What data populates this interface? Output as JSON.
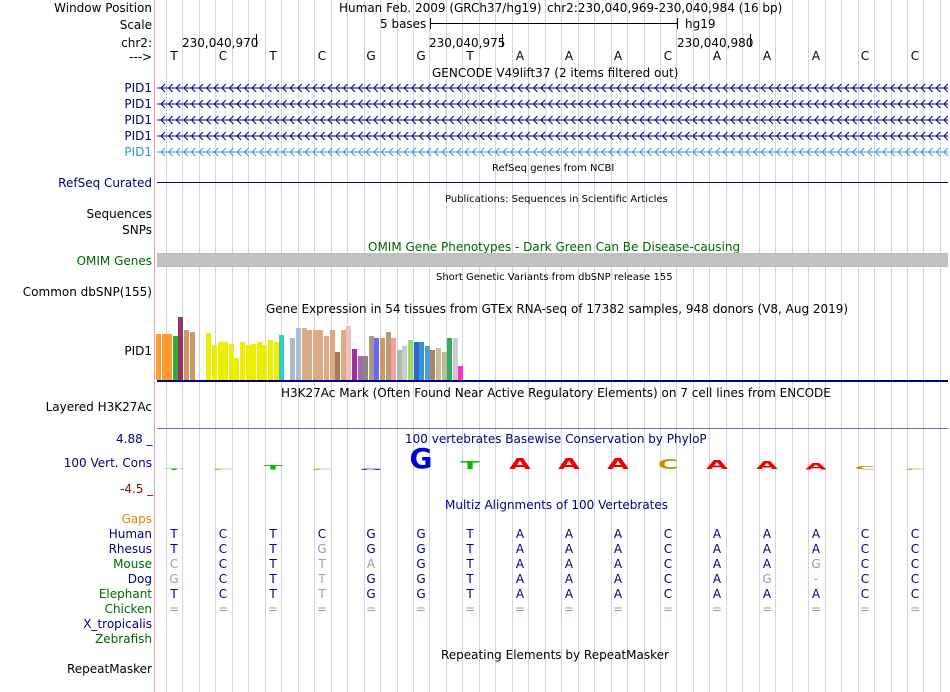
{
  "header": {
    "window_position_label": "Window Position",
    "assembly": "Human Feb. 2009 (GRCh37/hg19)",
    "position": "chr2:230,040,969-230,040,984 (16 bp)",
    "scale_label": "Scale",
    "scale_value": "5 bases",
    "scale_db": "hg19",
    "chrom_label": "chr2:",
    "coords": [
      "230,040,970",
      "230,040,975",
      "230,040,980"
    ],
    "strand_label": "--->"
  },
  "sequence": [
    "T",
    "C",
    "T",
    "C",
    "G",
    "G",
    "T",
    "A",
    "A",
    "A",
    "C",
    "A",
    "A",
    "A",
    "C",
    "C"
  ],
  "gencode": {
    "title": "GENCODE V49lift37 (2 items filtered out)",
    "items": [
      "PID1",
      "PID1",
      "PID1",
      "PID1",
      "PID1"
    ]
  },
  "refseq": {
    "title": "RefSeq genes from NCBI",
    "label": "RefSeq Curated"
  },
  "publications": {
    "title": "Publications: Sequences in Scientific Articles",
    "label1": "Sequences",
    "label2": "SNPs"
  },
  "omim": {
    "title": "OMIM Gene Phenotypes - Dark Green Can Be Disease-causing",
    "label": "OMIM Genes"
  },
  "dbsnp": {
    "title": "Short Genetic Variants from dbSNP release 155",
    "label": "Common dbSNP(155)"
  },
  "gtex": {
    "title": "Gene Expression in 54 tissues from GTEx RNA-seq of 17382 samples, 948 donors (V8, Aug 2019)",
    "label": "PID1",
    "colors": [
      "#ff9933",
      "#ff9933",
      "#ff9933",
      "#33aa33",
      "#993366",
      "#cc9966",
      "#cc9966",
      "#ffffff",
      "#ffffff",
      "#eeee00",
      "#eeee00",
      "#eeee00",
      "#eeee00",
      "#eeee00",
      "#eeee00",
      "#eeee00",
      "#eeee00",
      "#eeee00",
      "#eeee00",
      "#eeee00",
      "#eeee00",
      "#eeee00",
      "#33cccc",
      "#ffffff",
      "#aabbcc",
      "#aabbcc",
      "#ddaa88",
      "#ddaa88",
      "#ddaa88",
      "#ddaa88",
      "#ddaa88",
      "#ddaa88",
      "#aa7755",
      "#ddaa88",
      "#f0c0c0",
      "#993399",
      "#aa66aa",
      "#888888",
      "#aa9988",
      "#6666ff",
      "#cc9966",
      "#bb9977",
      "#f4a0a0",
      "#aabbaa",
      "#cccccc",
      "#99dd66",
      "#3366cc",
      "#3399cc",
      "#5599dd",
      "#aa8866",
      "#ccbb99",
      "#bbbb99",
      "#33aa66",
      "#cccccc",
      "#ff33cc"
    ],
    "values": [
      46,
      46,
      46,
      44,
      63,
      50,
      48,
      0,
      0,
      47,
      35,
      38,
      38,
      36,
      22,
      38,
      35,
      36,
      38,
      35,
      40,
      38,
      45,
      0,
      42,
      52,
      52,
      50,
      50,
      50,
      44,
      50,
      28,
      50,
      54,
      31,
      24,
      24,
      44,
      42,
      42,
      48,
      42,
      30,
      34,
      40,
      38,
      38,
      34,
      30,
      32,
      28,
      42,
      42,
      14
    ]
  },
  "h3k27ac": {
    "title": "H3K27Ac Mark (Often Found Near Active Regulatory Elements) on 7 cell lines from ENCODE",
    "label": "Layered H3K27Ac"
  },
  "conservation": {
    "title": "100 vertebrates Basewise Conservation by PhyloP",
    "label": "100 Vert. Cons",
    "max": "4.88 _",
    "min": "-4.5 _",
    "bases": [
      "T",
      "C",
      "T",
      "C",
      "G",
      "G",
      "T",
      "A",
      "A",
      "A",
      "C",
      "A",
      "A",
      "A",
      "C",
      "C"
    ],
    "scores": [
      0.1,
      0.05,
      0.6,
      0.05,
      0.1,
      2.9,
      1.1,
      1.6,
      1.6,
      1.6,
      1.4,
      1.3,
      1.1,
      0.9,
      0.5,
      0.2
    ]
  },
  "multiz": {
    "title": "Multiz Alignments of 100 Vertebrates",
    "gaps_label": "Gaps",
    "species": [
      {
        "name": "Human",
        "seq": [
          "T",
          "C",
          "T",
          "C",
          "G",
          "G",
          "T",
          "A",
          "A",
          "A",
          "C",
          "A",
          "A",
          "A",
          "C",
          "C"
        ]
      },
      {
        "name": "Rhesus",
        "seq": [
          "T",
          "C",
          "T",
          "G",
          "G",
          "G",
          "T",
          "A",
          "A",
          "A",
          "C",
          "A",
          "A",
          "A",
          "C",
          "C"
        ]
      },
      {
        "name": "Mouse",
        "seq": [
          "C",
          "C",
          "T",
          "T",
          "A",
          "G",
          "T",
          "A",
          "A",
          "A",
          "C",
          "A",
          "A",
          "G",
          "C",
          "C"
        ]
      },
      {
        "name": "Dog",
        "seq": [
          "G",
          "C",
          "T",
          "T",
          "G",
          "G",
          "T",
          "A",
          "A",
          "A",
          "C",
          "A",
          "G",
          "-",
          "C",
          "C"
        ]
      },
      {
        "name": "Elephant",
        "seq": [
          "T",
          "C",
          "T",
          "T",
          "G",
          "G",
          "T",
          "A",
          "A",
          "A",
          "C",
          "A",
          "A",
          "A",
          "C",
          "C"
        ]
      },
      {
        "name": "Chicken",
        "seq": [
          "=",
          "=",
          "=",
          "=",
          "=",
          "=",
          "=",
          "=",
          "=",
          "=",
          "=",
          "=",
          "=",
          "=",
          "=",
          "="
        ]
      },
      {
        "name": "X_tropicalis",
        "seq": []
      },
      {
        "name": "Zebrafish",
        "seq": []
      }
    ]
  },
  "repeatmasker": {
    "title": "Repeating Elements by RepeatMasker",
    "label": "RepeatMasker"
  },
  "colors": {
    "gencode_blue": "#000080",
    "pid1_last": "#3399cc",
    "omim_green": "#006400",
    "gaps_orange": "#dd8800",
    "species_blue": "#000080",
    "species_green": "#006600",
    "cons_min": "#8b0000"
  }
}
